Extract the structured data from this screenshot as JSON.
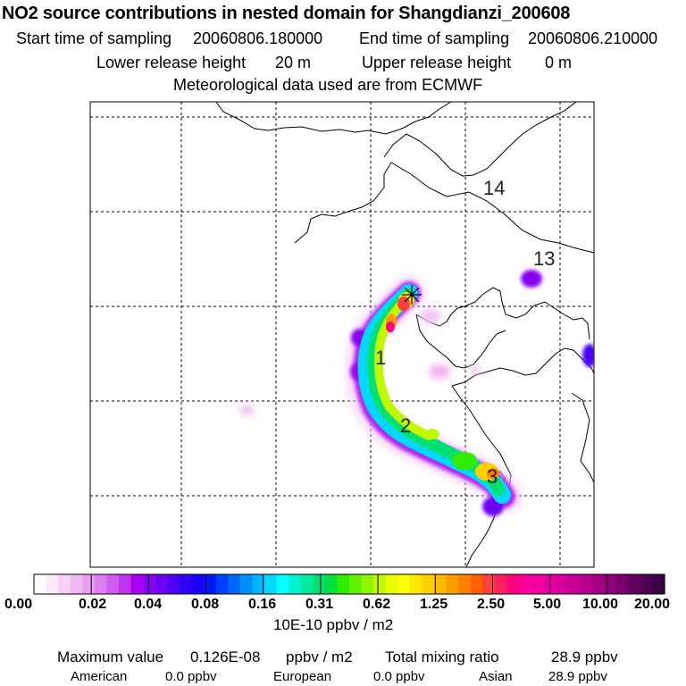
{
  "header": {
    "title": "NO2 source contributions in nested domain for Shangdianzi_200608",
    "start_label": "Start time of sampling",
    "start_value": "20060806.180000",
    "end_label": "End time of sampling",
    "end_value": "20060806.210000",
    "lower_label": "Lower release height",
    "lower_value": "20 m",
    "upper_label": "Upper release height",
    "upper_value": "0 m",
    "met_label": "Meteorological data used are from ECMWF"
  },
  "map": {
    "trajectory_labels": [
      "1",
      "2",
      "3",
      "13",
      "14"
    ],
    "source_marker": "star-cross"
  },
  "chart_data": {
    "type": "heatmap",
    "title": "NO2 source contributions in nested domain for Shangdianzi_200608",
    "colorbar": {
      "ticks": [
        "0.00",
        "0.02",
        "0.04",
        "0.08",
        "0.16",
        "0.31",
        "0.62",
        "1.25",
        "2.50",
        "5.00",
        "10.00",
        "20.00"
      ],
      "units": "10E-10 ppbv / m2",
      "colors": [
        "#ffffff",
        "#fbe8fb",
        "#f7d3f8",
        "#f1b8f4",
        "#e99df1",
        "#dd7ef0",
        "#cf5cf0",
        "#bf32ef",
        "#a800f0",
        "#8a00f2",
        "#6c00f3",
        "#4e00f4",
        "#3000f6",
        "#1a00f8",
        "#0018fb",
        "#0040fd",
        "#0068fd",
        "#0090fd",
        "#00b4fd",
        "#00d8fd",
        "#00ffff",
        "#00f2d0",
        "#00eaa0",
        "#00e070",
        "#00e040",
        "#30ec00",
        "#60f000",
        "#90f400",
        "#c0f800",
        "#e8fc00",
        "#ffff00",
        "#ffe800",
        "#ffd000",
        "#ffb800",
        "#ff9c00",
        "#ff8000",
        "#ff6000",
        "#ff4040",
        "#ff2060",
        "#ff0080",
        "#ff0099",
        "#f200a0",
        "#e600a0",
        "#d8009c",
        "#c80096",
        "#b8008e",
        "#a40084",
        "#900078",
        "#7a006c",
        "#640060",
        "#4e0052",
        "#3c0044"
      ]
    }
  },
  "stats": {
    "max_label": "Maximum value",
    "max_value": "0.126E-08",
    "max_unit": "ppbv / m2",
    "total_label": "Total mixing ratio",
    "total_value": "28.9 ppbv",
    "american_label": "American",
    "american_value": "0.0 ppbv",
    "european_label": "European",
    "european_value": "0.0 ppbv",
    "asian_label": "Asian",
    "asian_value": "28.9 ppbv"
  }
}
